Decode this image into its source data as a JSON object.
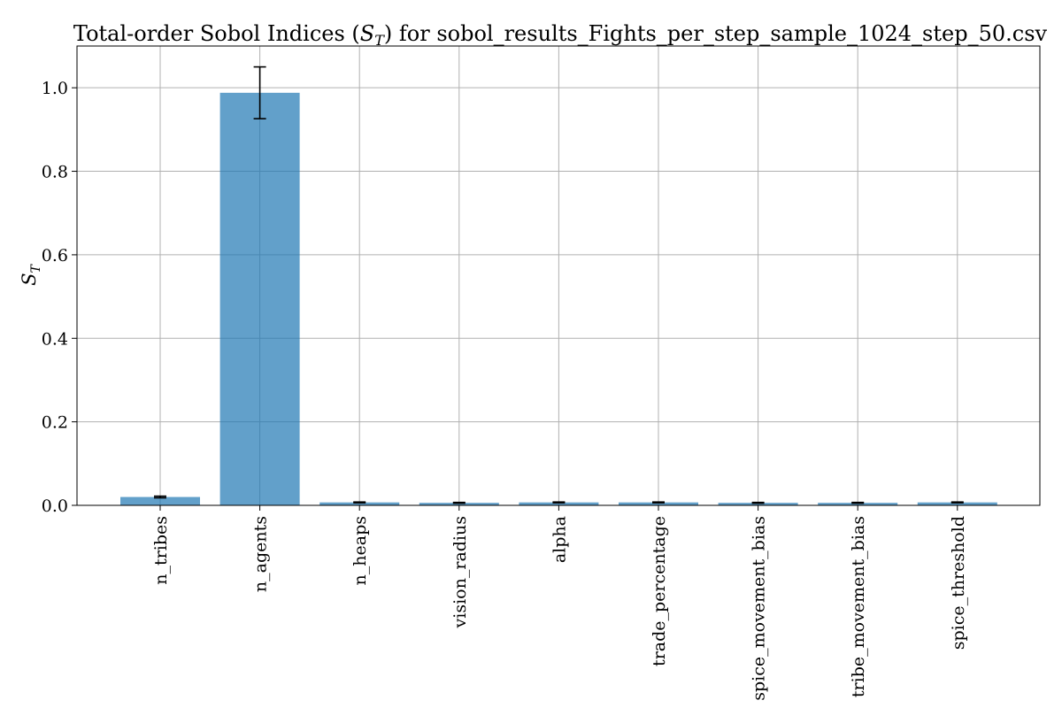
{
  "chart_data": {
    "type": "bar",
    "title": "Total-order Sobol Indices (S_T) for sobol_results_Fights_per_step_sample_1024_step_50.csv",
    "title_prefix": "Total-order Sobol Indices (",
    "title_symbol": "S",
    "title_subscript": "T",
    "title_suffix": ") for sobol_results_Fights_per_step_sample_1024_step_50.csv",
    "ylabel": "S_T",
    "ylabel_symbol": "S",
    "ylabel_subscript": "T",
    "xlabel": "",
    "categories": [
      "n_tribes",
      "n_agents",
      "n_heaps",
      "vision_radius",
      "alpha",
      "trade_percentage",
      "spice_movement_bias",
      "tribe_movement_bias",
      "spice_threshold"
    ],
    "values": [
      0.02,
      0.988,
      0.007,
      0.006,
      0.007,
      0.007,
      0.006,
      0.006,
      0.007
    ],
    "errors": [
      0.002,
      0.062,
      0.001,
      0.001,
      0.001,
      0.001,
      0.001,
      0.001,
      0.001
    ],
    "ylim": [
      0,
      1.1
    ],
    "yticks": [
      0.0,
      0.2,
      0.4,
      0.6,
      0.8,
      1.0
    ],
    "ytick_labels": [
      "0.0",
      "0.2",
      "0.4",
      "0.6",
      "0.8",
      "1.0"
    ],
    "grid": true,
    "bar_color": "#1f77b4",
    "bar_alpha": 0.7,
    "legend": "none"
  }
}
